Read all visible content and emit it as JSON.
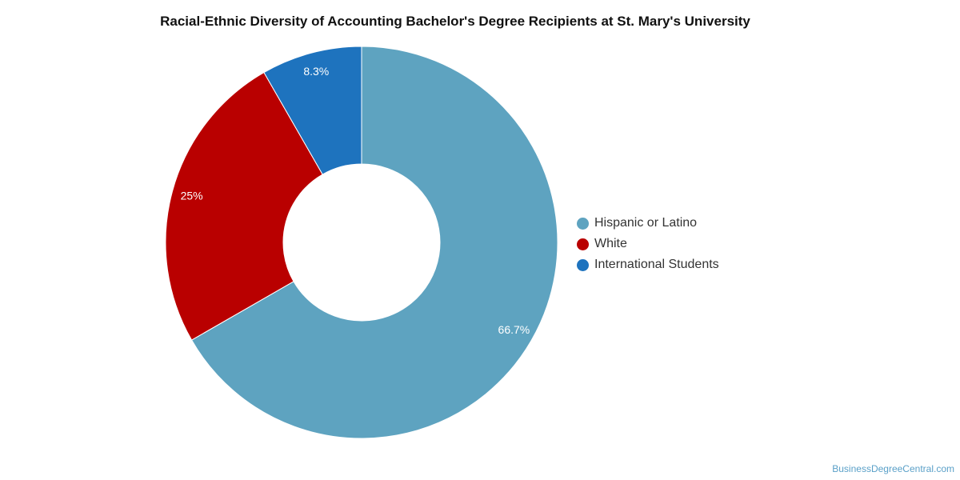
{
  "chart_data": {
    "type": "pie",
    "variant": "donut",
    "title": "Racial-Ethnic Diversity of Accounting Bachelor's Degree Recipients at St. Mary's University",
    "slices": [
      {
        "name": "Hispanic or Latino",
        "value": 66.7,
        "label": "66.7%",
        "color": "#5ea3c0"
      },
      {
        "name": "White",
        "value": 25,
        "label": "25%",
        "color": "#b90000"
      },
      {
        "name": "International Students",
        "value": 8.3,
        "label": "8.3%",
        "color": "#1e73be"
      }
    ],
    "legend_position": "right"
  },
  "watermark": "BusinessDegreeCentral.com"
}
